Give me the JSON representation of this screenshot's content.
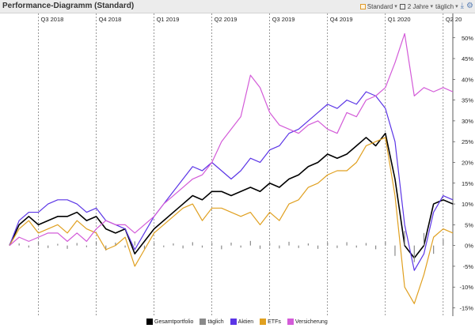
{
  "window": {
    "title": "Performance-Diagramm (Standard)"
  },
  "toolbar": {
    "preset_label": "Standard",
    "period_label": "2 Jahre",
    "interval_label": "täglich",
    "icons": [
      "calendar-icon",
      "download-icon",
      "gear-icon"
    ]
  },
  "chart_data": {
    "type": "line",
    "title": "Performance-Diagramm (Standard)",
    "period_labels": [
      "Q3 2018",
      "Q4 2018",
      "Q1 2019",
      "Q2 2019",
      "Q3 2019",
      "Q4 2019",
      "Q1 2020",
      "Q2 20"
    ],
    "y_ticks": [
      "50%",
      "45%",
      "40%",
      "35%",
      "30%",
      "25%",
      "20%",
      "15%",
      "10%",
      "5%",
      "0%",
      "-5%",
      "-10%",
      "-15%"
    ],
    "ylim": [
      -17,
      53
    ],
    "y_unit": "%",
    "x_range": [
      0,
      23
    ],
    "x_period_bounds": [
      1.5,
      4.5,
      7.5,
      10.5,
      13.5,
      16.5,
      19.5,
      22.5
    ],
    "grid": "vertical dashed quarter lines",
    "legend_position": "bottom",
    "x": [
      0,
      0.5,
      1,
      1.5,
      2,
      2.5,
      3,
      3.5,
      4,
      4.5,
      5,
      5.5,
      6,
      6.5,
      7,
      7.5,
      8,
      8.5,
      9,
      9.5,
      10,
      10.5,
      11,
      11.5,
      12,
      12.5,
      13,
      13.5,
      14,
      14.5,
      15,
      15.5,
      16,
      16.5,
      17,
      17.5,
      18,
      18.5,
      19,
      19.5,
      20,
      20.5,
      21,
      21.5,
      22,
      22.5,
      23
    ],
    "series": [
      {
        "name": "Gesamtportfolio",
        "color": "#000000",
        "values": [
          0,
          5,
          7,
          5,
          6,
          7,
          7,
          8,
          6,
          7,
          4,
          3,
          4,
          -2,
          1,
          4,
          6,
          8,
          10,
          12,
          11,
          13,
          13,
          12,
          13,
          14,
          13,
          15,
          14,
          16,
          17,
          19,
          20,
          22,
          21,
          22,
          24,
          26,
          24,
          27,
          16,
          0,
          -3,
          0,
          10,
          11,
          10
        ]
      },
      {
        "name": "täglich",
        "color": "#8a8a8a",
        "values": [
          0,
          0.5,
          -0.5,
          0.8,
          -0.6,
          0.4,
          -0.8,
          0.6,
          -0.4,
          0.9,
          -1.2,
          0.7,
          -0.5,
          1.0,
          -0.8,
          0.6,
          -0.4,
          0.5,
          -0.7,
          0.8,
          -0.5,
          0.6,
          -0.9,
          0.7,
          -0.5,
          1.1,
          -0.8,
          0.6,
          -0.7,
          0.9,
          -0.6,
          0.5,
          -0.8,
          0.7,
          -0.6,
          0.8,
          -0.5,
          0.6,
          -0.9,
          1.0,
          -2.5,
          3.5,
          -4.0,
          3.0,
          -2.0,
          1.5,
          -1.0
        ]
      },
      {
        "name": "Aktien",
        "color": "#5b35e6",
        "values": [
          0,
          6,
          8,
          8,
          10,
          11,
          11,
          10,
          8,
          9,
          6,
          5,
          4,
          -1,
          3,
          7,
          10,
          13,
          16,
          19,
          18,
          20,
          18,
          16,
          18,
          21,
          20,
          23,
          24,
          27,
          28,
          30,
          32,
          34,
          33,
          35,
          34,
          37,
          36,
          33,
          25,
          5,
          -6,
          -2,
          8,
          12,
          11
        ]
      },
      {
        "name": "ETFs",
        "color": "#e0a020",
        "values": [
          0,
          4,
          6,
          3,
          4,
          5,
          3,
          6,
          4,
          3,
          -1,
          0,
          2,
          -5,
          -1,
          3,
          5,
          7,
          9,
          10,
          6,
          9,
          9,
          8,
          7,
          8,
          5,
          8,
          6,
          10,
          11,
          14,
          15,
          17,
          18,
          18,
          20,
          24,
          25,
          26,
          12,
          -10,
          -14,
          -7,
          2,
          4,
          3
        ]
      },
      {
        "name": "Versicherung",
        "color": "#d35bd8",
        "values": [
          0,
          2,
          1,
          2,
          3,
          3,
          1,
          3,
          1,
          4,
          6,
          5,
          5,
          3,
          5,
          7,
          10,
          12,
          14,
          16,
          17,
          20,
          25,
          28,
          31,
          41,
          38,
          32,
          29,
          28,
          27,
          29,
          30,
          28,
          27,
          32,
          31,
          35,
          36,
          38,
          44,
          51,
          36,
          38,
          37,
          38,
          37
        ]
      }
    ]
  }
}
